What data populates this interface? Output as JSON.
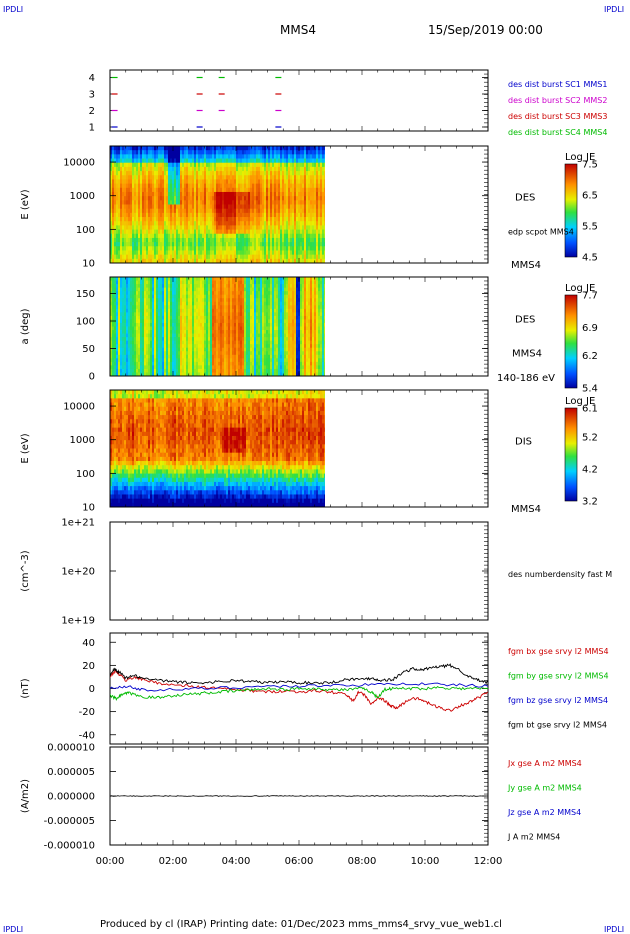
{
  "header": {
    "logo_left": "IPDLI",
    "logo_right": "IPDLI",
    "spacecraft": "MMS4",
    "datetime": "15/Sep/2019 00:00",
    "footer_left": "IPDLI",
    "footer_right": "IPDLI"
  },
  "footer": {
    "text": "Produced by cl (IRAP)   Printing date: 01/Dec/2023   mms_mms4_srvy_vue_web1.cl"
  },
  "colors": {
    "mms1": "#0000cc",
    "mms2": "#cc00cc",
    "mms3": "#cc0000",
    "mms4": "#00bb00",
    "bx": "#cc0000",
    "by": "#00bb00",
    "bz": "#0000cc",
    "bt": "#000000"
  },
  "x_axis": {
    "range_hours": [
      0,
      12
    ],
    "ticks": [
      "00:00",
      "02:00",
      "04:00",
      "06:00",
      "08:00",
      "10:00",
      "12:00"
    ]
  },
  "chart_data": [
    {
      "type": "scatter",
      "panel": "burst-availability",
      "yticks": [
        "1",
        "2",
        "3",
        "4"
      ],
      "legend": [
        "des dist burst SC1 MMS1",
        "des dist burst SC2 MMS2",
        "des dist burst SC3 MMS3",
        "des dist burst SC4 MMS4"
      ],
      "series": [
        {
          "name": "des dist burst SC1 MMS1",
          "color": "#0000cc",
          "y": 1,
          "x": [
            0.05,
            2.75,
            5.25
          ]
        },
        {
          "name": "des dist burst SC2 MMS2",
          "color": "#cc00cc",
          "y": 2,
          "x": [
            0.05,
            2.75,
            3.45,
            5.25
          ]
        },
        {
          "name": "des dist burst SC3 MMS3",
          "color": "#cc0000",
          "y": 3,
          "x": [
            0.05,
            2.75,
            3.45,
            5.25
          ]
        },
        {
          "name": "des dist burst SC4 MMS4",
          "color": "#00bb00",
          "y": 4,
          "x": [
            0.05,
            2.75,
            3.45,
            5.25
          ]
        }
      ]
    },
    {
      "type": "heatmap",
      "panel": "des-energy",
      "ylabel": "E (eV)",
      "yscale": "log",
      "ylim": [
        10,
        30000
      ],
      "yticks": [
        "10",
        "100",
        "1000",
        "10000"
      ],
      "data_x_end_hours": 6.85,
      "label": "DES",
      "sublabel": "edp scpot MMS4",
      "bottom_label": "MMS4",
      "colorbar": {
        "title": "Log JE",
        "ticks": [
          "7.5",
          "6.5",
          "5.5",
          "4.5"
        ],
        "range": [
          4.5,
          7.5
        ]
      }
    },
    {
      "type": "heatmap",
      "panel": "des-pitch-angle",
      "ylabel": "a (deg)",
      "ylim": [
        0,
        180
      ],
      "yticks": [
        "0",
        "50",
        "100",
        "150"
      ],
      "data_x_end_hours": 6.85,
      "label": "DES",
      "sublabel": "MMS4",
      "bottom_label": "140-186 eV",
      "colorbar": {
        "title": "Log JE",
        "ticks": [
          "7.7",
          "6.9",
          "6.2",
          "5.4"
        ],
        "range": [
          5.4,
          7.7
        ]
      }
    },
    {
      "type": "heatmap",
      "panel": "dis-energy",
      "ylabel": "E (eV)",
      "yscale": "log",
      "ylim": [
        10,
        30000
      ],
      "yticks": [
        "10",
        "100",
        "1000",
        "10000"
      ],
      "data_x_end_hours": 6.85,
      "label": "DIS",
      "bottom_label": "MMS4",
      "colorbar": {
        "title": "Log JE",
        "ticks": [
          "6.1",
          "5.2",
          "4.2",
          "3.2"
        ],
        "range": [
          3.2,
          6.1
        ]
      }
    },
    {
      "type": "line",
      "panel": "density",
      "ylabel": "(cm^-3)",
      "yscale": "log",
      "ylim": [
        1e+19,
        1e+21
      ],
      "yticks": [
        "1e+19",
        "1e+20",
        "1e+21"
      ],
      "legend": [
        "des numberdensity fast M"
      ],
      "series": []
    },
    {
      "type": "line",
      "panel": "magnetic-field",
      "ylabel": "(nT)",
      "ylim": [
        -48,
        48
      ],
      "yticks": [
        "40",
        "20",
        "0",
        "-20",
        "-40"
      ],
      "legend": [
        "fgm bx gse srvy l2 MMS4",
        "fgm by gse srvy l2 MMS4",
        "fgm bz gse srvy l2 MMS4",
        "fgm bt gse srvy l2 MMS4"
      ],
      "series": [
        {
          "name": "fgm bx gse srvy l2 MMS4",
          "color": "#cc0000",
          "x": [
            0,
            0.15,
            0.3,
            0.5,
            0.8,
            1.0,
            1.5,
            2.0,
            2.5,
            3.0,
            3.5,
            4.0,
            4.5,
            5.0,
            5.5,
            6.0,
            6.5,
            7.0,
            7.5,
            7.7,
            7.9,
            8.1,
            8.3,
            8.5,
            8.7,
            8.9,
            9.1,
            9.3,
            9.6,
            9.9,
            10.2,
            10.5,
            10.8,
            11.1,
            11.4,
            11.7,
            12.0
          ],
          "y": [
            10,
            15,
            12,
            7,
            10,
            8,
            5,
            3,
            2,
            1,
            0,
            -1,
            -2,
            -3,
            -2,
            -3,
            -2,
            -3,
            -5,
            -11,
            -3,
            -6,
            -14,
            -8,
            -10,
            -15,
            -17,
            -13,
            -8,
            -10,
            -14,
            -17,
            -19,
            -15,
            -12,
            -8,
            -3
          ]
        },
        {
          "name": "fgm by gse srvy l2 MMS4",
          "color": "#00bb00",
          "x": [
            0,
            0.2,
            0.4,
            0.6,
            1.0,
            1.5,
            2.0,
            2.5,
            3.0,
            3.5,
            4.0,
            4.5,
            5.0,
            5.5,
            6.0,
            6.5,
            7.0,
            7.5,
            8.0,
            8.3,
            8.5,
            8.7,
            9.0,
            9.5,
            10.0,
            10.5,
            11.0,
            11.5,
            12.0
          ],
          "y": [
            -6,
            -9,
            -5,
            -4,
            -7,
            -8,
            -6,
            -5,
            -4,
            -3,
            -2,
            -1,
            0,
            -1,
            0,
            0,
            -1,
            -1,
            0,
            -3,
            -8,
            -1,
            0,
            0,
            0,
            1,
            0,
            0,
            0
          ]
        },
        {
          "name": "fgm bz gse srvy l2 MMS4",
          "color": "#0000cc",
          "x": [
            0,
            0.5,
            1.0,
            2.0,
            3.0,
            4.0,
            5.0,
            6.0,
            7.0,
            8.0,
            9.0,
            10.0,
            11.0,
            12.0
          ],
          "y": [
            0,
            2,
            -1,
            -1,
            0,
            1,
            2,
            2,
            3,
            3,
            4,
            4,
            3,
            2
          ]
        },
        {
          "name": "fgm bt gse srvy l2 MMS4",
          "color": "#000000",
          "x": [
            0,
            0.15,
            0.3,
            0.5,
            0.8,
            1.0,
            1.5,
            2.0,
            2.5,
            3.0,
            3.5,
            4.0,
            4.5,
            5.0,
            5.5,
            6.0,
            6.5,
            7.0,
            7.5,
            8.0,
            8.3,
            8.6,
            9.0,
            9.3,
            9.6,
            9.9,
            10.2,
            10.5,
            10.8,
            11.1,
            11.4,
            11.7,
            12.0
          ],
          "y": [
            12,
            17,
            14,
            9,
            11,
            9,
            7,
            6,
            5,
            5,
            6,
            7,
            6,
            5,
            6,
            5,
            5,
            5,
            8,
            8,
            9,
            7,
            8,
            14,
            17,
            16,
            18,
            19,
            20,
            16,
            10,
            7,
            5
          ]
        }
      ]
    },
    {
      "type": "line",
      "panel": "current-density",
      "ylabel": "(A/m2)",
      "ylim": [
        -1e-05,
        1e-05
      ],
      "yticks": [
        "0.000010",
        "0.000005",
        "0.000000",
        "-0.000005",
        "-0.000010"
      ],
      "legend": [
        "Jx gse A m2 MMS4",
        "Jy gse A m2 MMS4",
        "Jz gse A m2 MMS4",
        "J A m2 MMS4"
      ],
      "series": [
        {
          "name": "J A m2 MMS4",
          "color": "#000000",
          "x": [
            0,
            12
          ],
          "y": [
            0,
            0
          ]
        }
      ]
    }
  ]
}
